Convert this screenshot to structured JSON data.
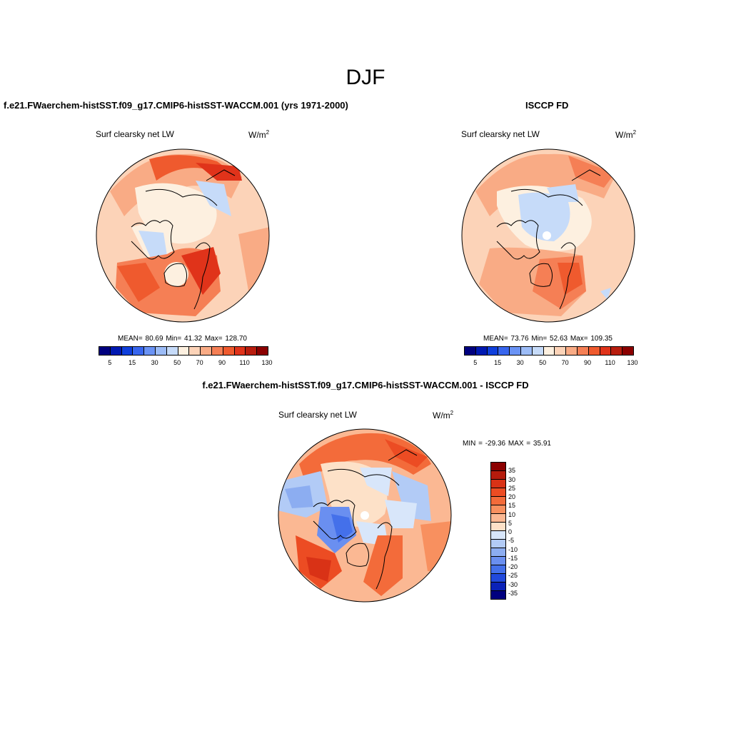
{
  "figure": {
    "title": "DJF"
  },
  "panels": {
    "model": {
      "title": "f.e21.FWaerchem-histSST.f09_g17.CMIP6-histSST-WACCM.001 (yrs 1971-2000)",
      "variable": "Surf clearsky net LW",
      "units": "W/m",
      "units_sup": "2",
      "stats": "MEAN=  80.69  Min=  41.32  Max= 128.70",
      "colorbar_ticks": [
        "5",
        "15",
        "30",
        "50",
        "70",
        "90",
        "110",
        "130"
      ]
    },
    "obs": {
      "title": "ISCCP FD",
      "variable": "Surf clearsky net LW",
      "units": "W/m",
      "units_sup": "2",
      "stats": "MEAN=  73.76  Min=  52.63  Max= 109.35",
      "colorbar_ticks": [
        "5",
        "15",
        "30",
        "50",
        "70",
        "90",
        "110",
        "130"
      ]
    },
    "diff": {
      "title": "f.e21.FWaerchem-histSST.f09_g17.CMIP6-histSST-WACCM.001 - ISCCP FD",
      "variable": "Surf clearsky net LW",
      "units": "W/m",
      "units_sup": "2",
      "stats": "MIN = -29.36 MAX =  35.91",
      "colorbar_ticks": [
        "35",
        "30",
        "25",
        "20",
        "15",
        "10",
        "5",
        "0",
        "-5",
        "-10",
        "-15",
        "-20",
        "-25",
        "-30",
        "-35"
      ]
    }
  },
  "colors": {
    "abs_scale": [
      "#00007f",
      "#0019b2",
      "#0f3fdc",
      "#3866ee",
      "#6a93f5",
      "#9cbcf7",
      "#c6dbf9",
      "#fdf0e0",
      "#fcd3b8",
      "#f9ab85",
      "#f57f55",
      "#ef5a2e",
      "#e0331a",
      "#b81d0e",
      "#8b0000"
    ],
    "diff_scale": [
      "#8b0000",
      "#b51b0c",
      "#d93216",
      "#ec4c23",
      "#f36b3a",
      "#f8905f",
      "#fbb893",
      "#fde1c8",
      "#d8e6fa",
      "#b2cbf6",
      "#8cadf1",
      "#6a8ff0",
      "#4470ea",
      "#2149dc",
      "#0a22b8",
      "#00007f"
    ],
    "coastline": "#000000"
  }
}
